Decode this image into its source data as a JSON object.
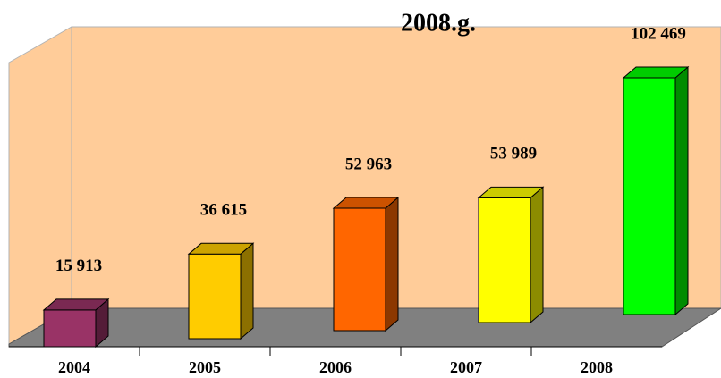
{
  "chart_data": {
    "type": "bar3d",
    "title": "2008.g.",
    "categories": [
      "2004",
      "2005",
      "2006",
      "2007",
      "2008"
    ],
    "values": [
      15913,
      36615,
      52963,
      53989,
      102469
    ],
    "value_labels": [
      "15 913",
      "36 615",
      "52 963",
      "53 989",
      "102 469"
    ],
    "colors": [
      "#993366",
      "#ffcc00",
      "#ff6600",
      "#ffff00",
      "#00ff00"
    ],
    "wall_color": "#ffcc99",
    "floor_color": "#808080"
  }
}
